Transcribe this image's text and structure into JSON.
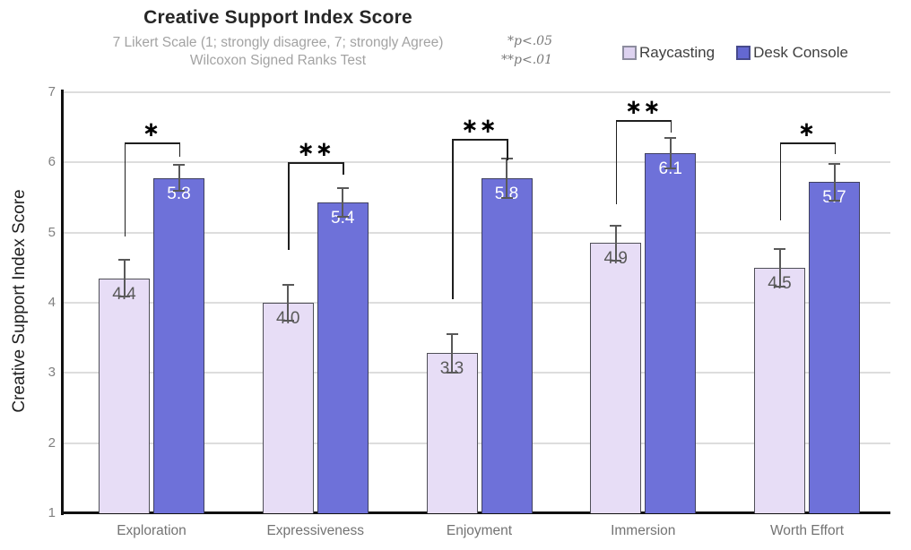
{
  "header": {
    "title": "Creative Support Index Score",
    "subtitle_line1": "7 Likert Scale (1; strongly disagree, 7; strongly Agree)",
    "subtitle_line2": "Wilcoxon Signed Ranks Test",
    "note_line1": "*p<.05",
    "note_line2": "**p<.01"
  },
  "legend": {
    "items": [
      {
        "label": "Raycasting",
        "fill": "#DDD2F0",
        "border": "#8C8C9E"
      },
      {
        "label": "Desk Console",
        "fill": "#6468D2",
        "border": "#474A8C"
      }
    ]
  },
  "chart_data": {
    "type": "bar",
    "title": "Creative Support Index Score",
    "subtitle": [
      "7 Likert Scale (1; strongly disagree, 7; strongly Agree)",
      "Wilcoxon Signed Ranks Test"
    ],
    "annotations": [
      "*p<.05",
      "**p<.01"
    ],
    "ylabel": "Creative Support Index Score",
    "xlabel": "",
    "ylim": [
      1,
      7
    ],
    "yticks": [
      1,
      2,
      3,
      4,
      5,
      6,
      7
    ],
    "grid": true,
    "legend_position": "top-right",
    "categories": [
      "Exploration",
      "Expressiveness",
      "Enjoyment",
      "Immersion",
      "Worth Effort"
    ],
    "series": [
      {
        "name": "Raycasting",
        "values": [
          4.35,
          4.0,
          3.28,
          4.85,
          4.5
        ],
        "data_labels": [
          "4.4",
          "4.0",
          "3.3",
          "4.9",
          "4.5"
        ],
        "error": [
          0.26,
          0.26,
          0.27,
          0.25,
          0.27
        ],
        "fill": "#E7DDF6",
        "border": "#4F4F57",
        "label_color": "#595959"
      },
      {
        "name": "Desk Console",
        "values": [
          5.78,
          5.43,
          5.78,
          6.13,
          5.72
        ],
        "data_labels": [
          "5.8",
          "5.4",
          "5.8",
          "6.1",
          "5.7"
        ],
        "error": [
          0.18,
          0.21,
          0.28,
          0.22,
          0.26
        ],
        "fill": "#6E71D9",
        "border": "#3F4060",
        "label_color": "#FFFFFF"
      }
    ],
    "significance_brackets": [
      {
        "category": "Exploration",
        "marker": "*",
        "bar_y": 6.28,
        "left_arm_to": 4.95,
        "right_arm_to": 6.08
      },
      {
        "category": "Expressiveness",
        "marker": "**",
        "bar_y": 6.0,
        "left_arm_to": 4.75,
        "right_arm_to": 5.82
      },
      {
        "category": "Enjoyment",
        "marker": "**",
        "bar_y": 6.33,
        "left_arm_to": 4.05,
        "right_arm_to": 6.03
      },
      {
        "category": "Immersion",
        "marker": "**",
        "bar_y": 6.6,
        "left_arm_to": 5.4,
        "right_arm_to": 6.43
      },
      {
        "category": "Worth Effort",
        "marker": "*",
        "bar_y": 6.28,
        "left_arm_to": 5.18,
        "right_arm_to": 6.12
      }
    ],
    "colors": {
      "raycasting_fill": "#E7DDF6",
      "desk_console_fill": "#6E71D9",
      "error_bar": "#595959",
      "gridline": "#DDDDDD",
      "axis": "#111111",
      "bracket": "#1F1F1F",
      "title_text": "#262626",
      "subtitle_text": "#A3A3A3",
      "tick_text": "#808080",
      "category_text": "#737373"
    }
  }
}
